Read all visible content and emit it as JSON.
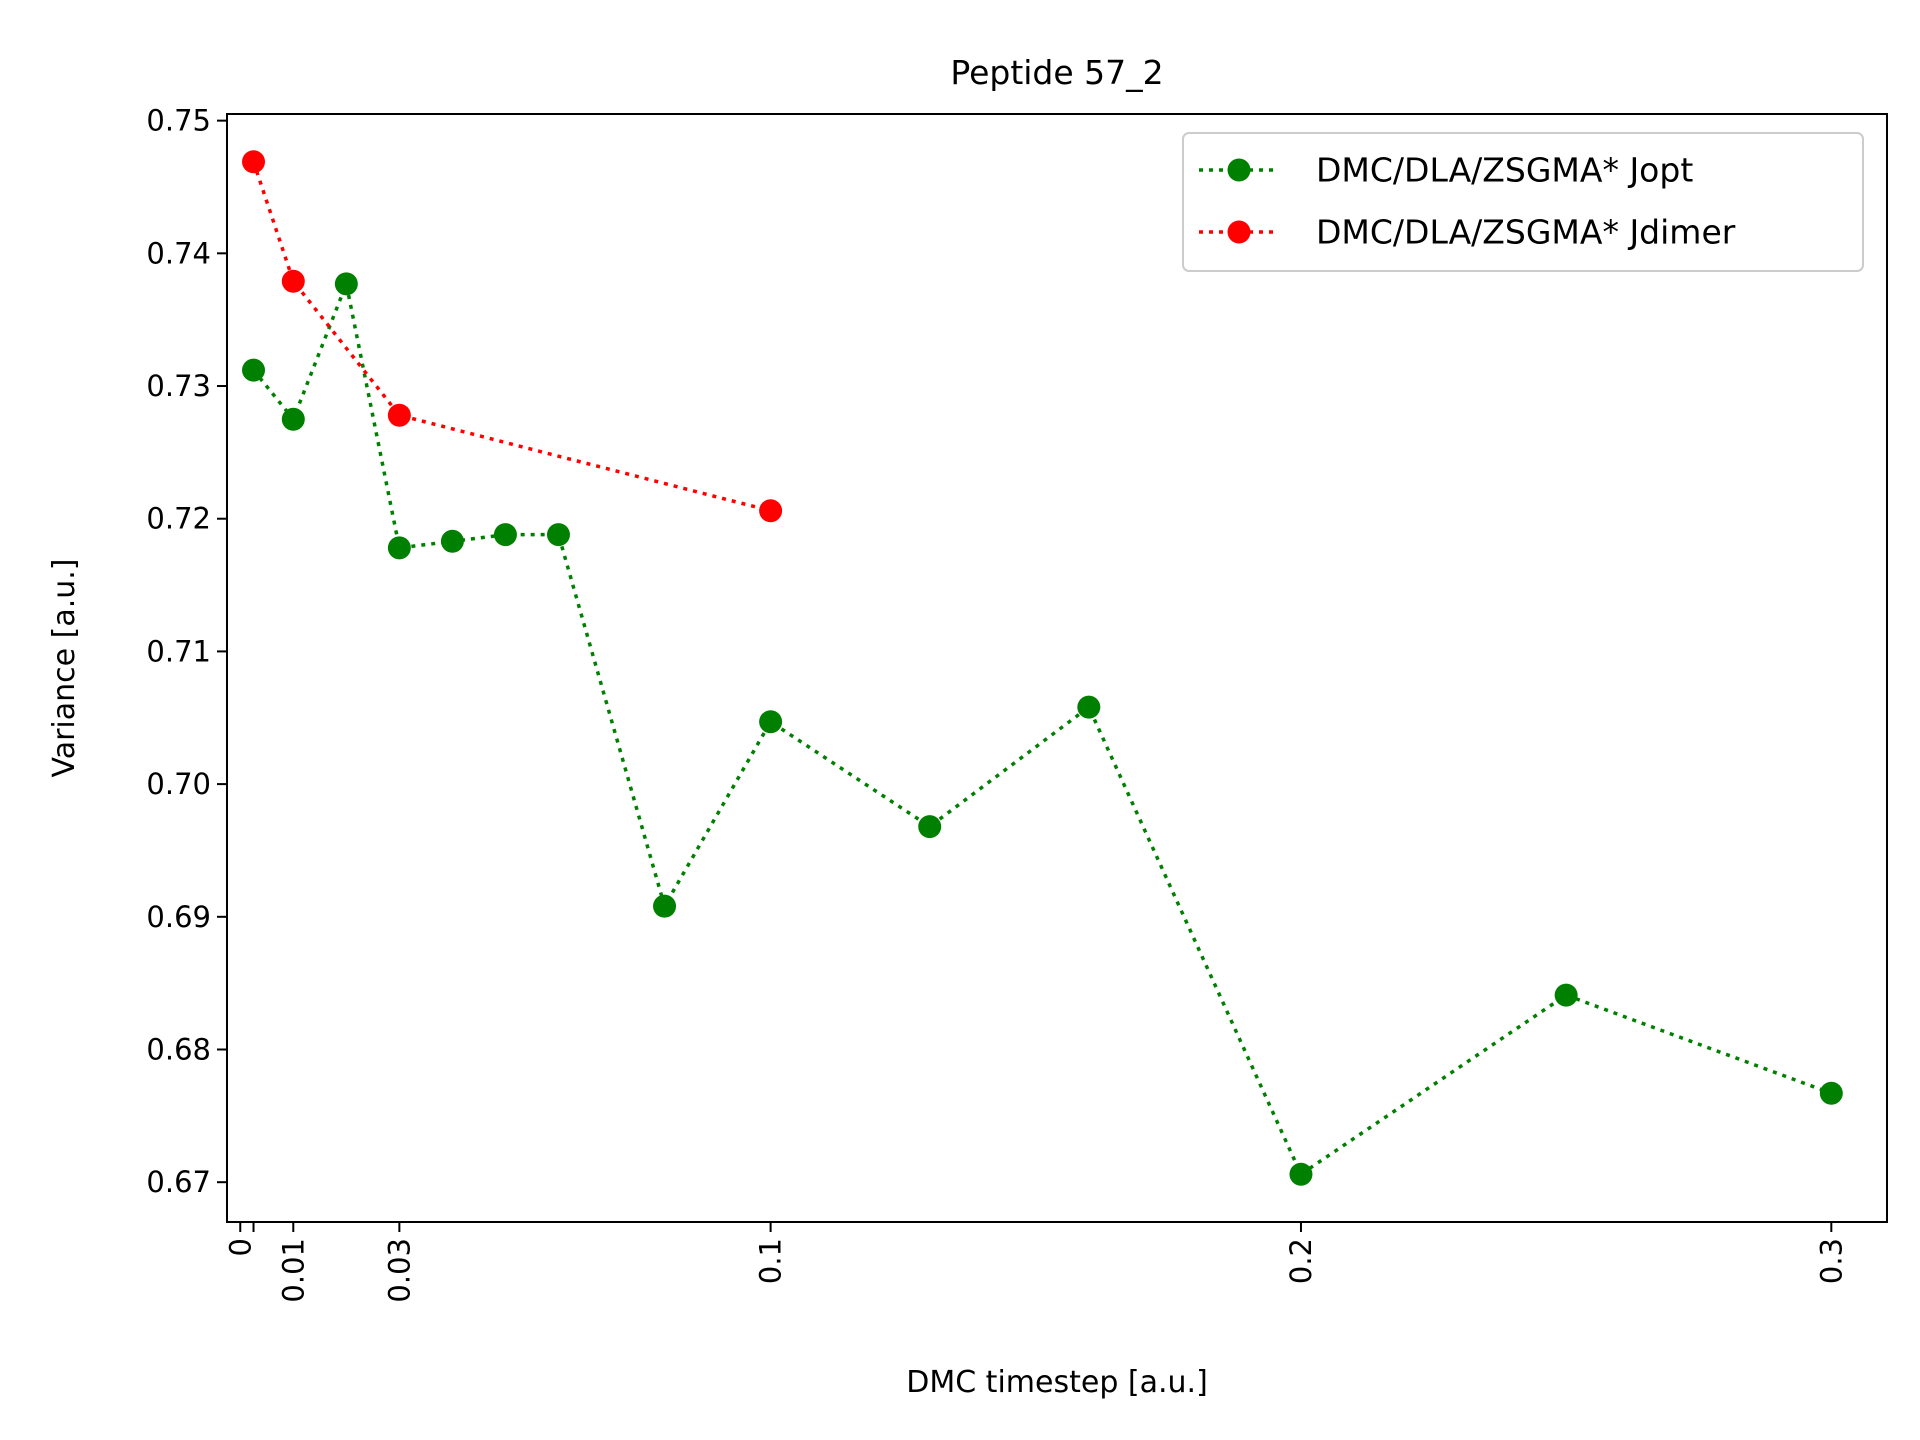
{
  "chart_data": {
    "type": "line",
    "title": "Peptide 57_2",
    "xlabel": "DMC timestep [a.u.]",
    "ylabel": "Variance [a.u.]",
    "xlim": [
      -0.0025,
      0.3105
    ],
    "ylim": [
      0.667,
      0.7505
    ],
    "x_ticks": [
      {
        "value": 0,
        "label": "0"
      },
      {
        "value": 0.0025,
        "label": ""
      },
      {
        "value": 0.01,
        "label": "0.01"
      },
      {
        "value": 0.03,
        "label": "0.03"
      },
      {
        "value": 0.1,
        "label": "0.1"
      },
      {
        "value": 0.2,
        "label": "0.2"
      },
      {
        "value": 0.3,
        "label": "0.3"
      }
    ],
    "y_ticks": [
      {
        "value": 0.67,
        "label": "0.67"
      },
      {
        "value": 0.68,
        "label": "0.68"
      },
      {
        "value": 0.69,
        "label": "0.69"
      },
      {
        "value": 0.7,
        "label": "0.70"
      },
      {
        "value": 0.71,
        "label": "0.71"
      },
      {
        "value": 0.72,
        "label": "0.72"
      },
      {
        "value": 0.73,
        "label": "0.73"
      },
      {
        "value": 0.74,
        "label": "0.74"
      },
      {
        "value": 0.75,
        "label": "0.75"
      }
    ],
    "grid": false,
    "legend_position": "top-right",
    "series": [
      {
        "name": "DMC/DLA/ZSGMA* Jopt",
        "color": "#008000",
        "line_style": "dotted",
        "marker": "circle",
        "x": [
          0.0025,
          0.01,
          0.02,
          0.03,
          0.04,
          0.05,
          0.06,
          0.08,
          0.1,
          0.13,
          0.16,
          0.2,
          0.25,
          0.3
        ],
        "y": [
          0.7312,
          0.7275,
          0.7377,
          0.7178,
          0.7183,
          0.7188,
          0.7188,
          0.6908,
          0.7047,
          0.6968,
          0.7058,
          0.6706,
          0.6841,
          0.6767
        ]
      },
      {
        "name": "DMC/DLA/ZSGMA* Jdimer",
        "color": "#ff0000",
        "line_style": "dotted",
        "marker": "circle",
        "x": [
          0.0025,
          0.01,
          0.03,
          0.1
        ],
        "y": [
          0.7469,
          0.7379,
          0.7278,
          0.7206
        ]
      }
    ]
  }
}
